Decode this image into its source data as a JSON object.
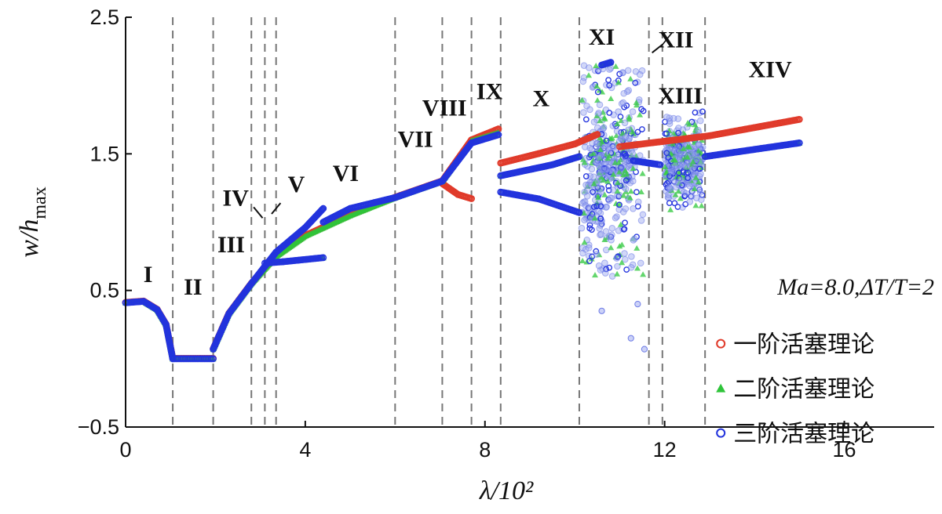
{
  "chart_data": {
    "type": "scatter",
    "xlabel": "λ/10²",
    "ylabel": "w/h_max",
    "xlim": [
      0,
      18
    ],
    "ylim": [
      -0.5,
      2.5
    ],
    "xticks": [
      "0",
      "4",
      "8",
      "12",
      "16"
    ],
    "xtick_values": [
      0,
      4,
      8,
      12,
      16
    ],
    "yticks": [
      "2.5",
      "1.5",
      "0.5",
      "−0.5"
    ],
    "ytick_values": [
      2.5,
      1.5,
      0.5,
      -0.5
    ],
    "grid": false,
    "legend_position": "right",
    "annotation": "Ma=8.0,ΔT/T=2",
    "region_boundaries": [
      1.05,
      1.95,
      2.8,
      3.1,
      3.35,
      6.0,
      7.05,
      7.7,
      8.35,
      10.1,
      11.65,
      11.95,
      12.9
    ],
    "region_labels": [
      {
        "text": "I",
        "x": 0.5,
        "y": 0.56
      },
      {
        "text": "II",
        "x": 1.5,
        "y": 0.47
      },
      {
        "text": "III",
        "x": 2.35,
        "y": 0.78
      },
      {
        "text": "IV",
        "x": 2.45,
        "y": 1.12
      },
      {
        "text": "V",
        "x": 3.8,
        "y": 1.22
      },
      {
        "text": "VI",
        "x": 4.9,
        "y": 1.3
      },
      {
        "text": "VII",
        "x": 6.45,
        "y": 1.55
      },
      {
        "text": "VIII",
        "x": 7.1,
        "y": 1.78
      },
      {
        "text": "IX",
        "x": 8.1,
        "y": 1.9
      },
      {
        "text": "X",
        "x": 9.25,
        "y": 1.85
      },
      {
        "text": "XI",
        "x": 10.6,
        "y": 2.3
      },
      {
        "text": "XII",
        "x": 12.25,
        "y": 2.28
      },
      {
        "text": "XIII",
        "x": 12.35,
        "y": 1.87
      },
      {
        "text": "XIV",
        "x": 14.35,
        "y": 2.06
      }
    ],
    "series": [
      {
        "name": "一阶活塞理论",
        "marker": "circle",
        "color": "#e03a2a",
        "branches": [
          [
            [
              0,
              0.41
            ],
            [
              0.4,
              0.42
            ],
            [
              0.7,
              0.36
            ],
            [
              0.9,
              0.25
            ],
            [
              1.05,
              0.0
            ]
          ],
          [
            [
              1.05,
              0.0
            ],
            [
              1.95,
              0.0
            ]
          ],
          [
            [
              1.95,
              0.07
            ],
            [
              2.3,
              0.33
            ],
            [
              2.8,
              0.55
            ],
            [
              3.35,
              0.75
            ],
            [
              4.0,
              0.9
            ],
            [
              5.0,
              1.05
            ],
            [
              6.0,
              1.18
            ],
            [
              7.05,
              1.3
            ],
            [
              7.7,
              1.6
            ],
            [
              8.3,
              1.68
            ]
          ],
          [
            [
              7.05,
              1.28
            ],
            [
              7.4,
              1.2
            ],
            [
              7.7,
              1.17
            ]
          ],
          [
            [
              8.35,
              1.43
            ],
            [
              9.2,
              1.5
            ],
            [
              10.0,
              1.57
            ],
            [
              10.5,
              1.64
            ]
          ],
          [
            [
              11.0,
              1.55
            ],
            [
              13.0,
              1.63
            ],
            [
              15.0,
              1.75
            ]
          ]
        ]
      },
      {
        "name": "二阶活塞理论",
        "marker": "triangle",
        "color": "#2fc43a",
        "branches": [
          [
            [
              0,
              0.41
            ],
            [
              0.4,
              0.42
            ],
            [
              0.7,
              0.36
            ],
            [
              0.9,
              0.25
            ],
            [
              1.05,
              0.0
            ]
          ],
          [
            [
              1.05,
              0.0
            ],
            [
              1.95,
              0.0
            ]
          ],
          [
            [
              1.95,
              0.07
            ],
            [
              2.3,
              0.33
            ],
            [
              2.8,
              0.55
            ],
            [
              3.35,
              0.75
            ],
            [
              4.0,
              0.9
            ],
            [
              5.0,
              1.05
            ],
            [
              6.0,
              1.18
            ],
            [
              7.05,
              1.3
            ],
            [
              7.7,
              1.6
            ],
            [
              8.3,
              1.66
            ]
          ],
          [
            [
              3.1,
              0.7
            ],
            [
              3.5,
              0.71
            ],
            [
              4.4,
              0.74
            ]
          ],
          [
            [
              8.35,
              1.34
            ],
            [
              9.5,
              1.42
            ],
            [
              10.1,
              1.48
            ]
          ],
          [
            [
              10.6,
              2.15
            ],
            [
              10.8,
              2.17
            ]
          ],
          [
            [
              12.9,
              1.48
            ],
            [
              15.0,
              1.58
            ]
          ]
        ]
      },
      {
        "name": "三阶活塞理论",
        "marker": "circle",
        "color": "#2233dd",
        "branches": [
          [
            [
              0,
              0.41
            ],
            [
              0.4,
              0.42
            ],
            [
              0.7,
              0.36
            ],
            [
              0.9,
              0.25
            ],
            [
              1.05,
              0.0
            ]
          ],
          [
            [
              1.05,
              0.0
            ],
            [
              1.95,
              0.0
            ]
          ],
          [
            [
              1.95,
              0.07
            ],
            [
              2.3,
              0.33
            ],
            [
              2.8,
              0.55
            ],
            [
              3.35,
              0.78
            ],
            [
              4.0,
              0.96
            ],
            [
              4.4,
              1.1
            ]
          ],
          [
            [
              3.1,
              0.7
            ],
            [
              3.5,
              0.71
            ],
            [
              4.4,
              0.74
            ]
          ],
          [
            [
              4.4,
              1.0
            ],
            [
              5.0,
              1.1
            ],
            [
              6.0,
              1.18
            ],
            [
              7.05,
              1.3
            ],
            [
              7.7,
              1.58
            ],
            [
              8.3,
              1.64
            ]
          ],
          [
            [
              8.35,
              1.22
            ],
            [
              9.2,
              1.17
            ],
            [
              10.1,
              1.07
            ]
          ],
          [
            [
              8.35,
              1.34
            ],
            [
              9.5,
              1.42
            ],
            [
              10.1,
              1.48
            ]
          ],
          [
            [
              10.6,
              2.15
            ],
            [
              10.8,
              2.17
            ]
          ],
          [
            [
              11.3,
              1.45
            ],
            [
              11.9,
              1.42
            ]
          ],
          [
            [
              12.9,
              1.48
            ],
            [
              15.0,
              1.58
            ]
          ]
        ]
      }
    ]
  }
}
